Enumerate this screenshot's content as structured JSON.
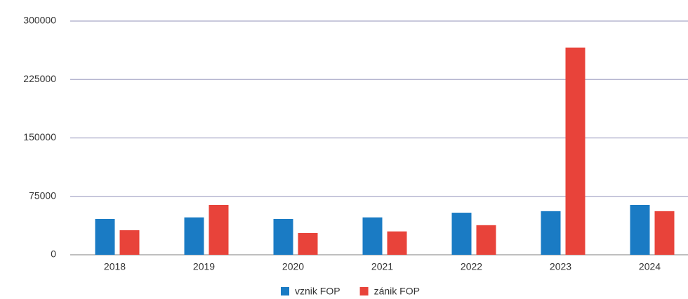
{
  "chart_data": {
    "type": "bar",
    "categories": [
      "2018",
      "2019",
      "2020",
      "2021",
      "2022",
      "2023",
      "2024"
    ],
    "series": [
      {
        "name": "vznik FOP",
        "color": "#1a7bc4",
        "values": [
          46000,
          48000,
          46000,
          48000,
          54000,
          56000,
          64000
        ]
      },
      {
        "name": "zánik FOP",
        "color": "#e8433a",
        "values": [
          31500,
          64000,
          28000,
          30000,
          38000,
          266000,
          56000
        ]
      }
    ],
    "ylim": [
      0,
      300000
    ],
    "yticks": [
      0,
      75000,
      150000,
      225000,
      300000
    ],
    "grid": true,
    "legend": "bottom"
  }
}
